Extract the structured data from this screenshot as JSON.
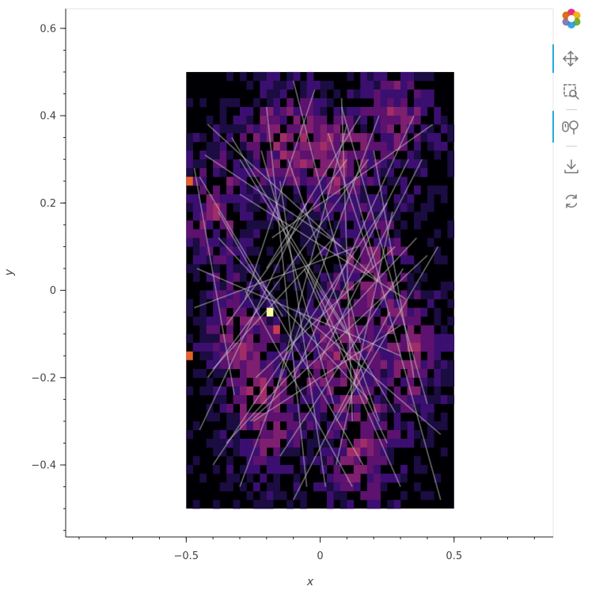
{
  "toolbar": {
    "tools": [
      {
        "name": "logo",
        "label": "Bokeh"
      },
      {
        "name": "pan",
        "label": "Pan",
        "active": true
      },
      {
        "name": "box-zoom",
        "label": "Box Zoom",
        "active": false
      },
      {
        "name": "wheel-zoom",
        "label": "Wheel Zoom",
        "active": true
      },
      {
        "name": "save",
        "label": "Save",
        "active": false
      },
      {
        "name": "reset",
        "label": "Reset",
        "active": false
      }
    ],
    "accent_color": "#26aae1"
  },
  "chart_data": {
    "type": "heatmap",
    "title": "",
    "xlabel": "x",
    "ylabel": "y",
    "xlim": [
      -0.95,
      0.87
    ],
    "ylim": [
      -0.565,
      0.645
    ],
    "x_ticks": [
      -0.5,
      0,
      0.5
    ],
    "y_ticks": [
      -0.4,
      -0.2,
      0,
      0.2,
      0.4,
      0.6
    ],
    "x_tick_labels": [
      "−0.5",
      "0",
      "0.5"
    ],
    "y_tick_labels": [
      "−0.4",
      "−0.2",
      "0",
      "0.2",
      "0.4",
      "0.6"
    ],
    "colormap": "inferno",
    "image_extent": {
      "x": [
        -0.5,
        0.5
      ],
      "y": [
        -0.5,
        0.5
      ]
    },
    "grid": {
      "nx": 40,
      "ny": 50
    },
    "hot_cells": [
      {
        "x": -0.19,
        "y": -0.04,
        "value": 1.0
      },
      {
        "x": -0.48,
        "y": 0.26,
        "value": 0.8
      },
      {
        "x": -0.48,
        "y": -0.14,
        "value": 0.8
      },
      {
        "x": -0.16,
        "y": -0.09,
        "value": 0.65
      },
      {
        "x": 0.12,
        "y": -0.37,
        "value": 0.6
      }
    ],
    "overlay": {
      "type": "path-segments",
      "color": "#c8c8c8",
      "opacity": 0.45,
      "segments": [
        [
          [
            -0.47,
            0.28
          ],
          [
            -0.32,
            -0.24
          ]
        ],
        [
          [
            -0.45,
            0.26
          ],
          [
            -0.14,
            -0.06
          ]
        ],
        [
          [
            -0.43,
            0.31
          ],
          [
            0.08,
            0.1
          ]
        ],
        [
          [
            -0.38,
            0.18
          ],
          [
            0.16,
            -0.4
          ]
        ],
        [
          [
            -0.35,
            -0.08
          ],
          [
            0.1,
            0.3
          ]
        ],
        [
          [
            -0.3,
            0.22
          ],
          [
            0.32,
            -0.02
          ]
        ],
        [
          [
            -0.28,
            0.0
          ],
          [
            0.12,
            -0.45
          ]
        ],
        [
          [
            -0.24,
            -0.2
          ],
          [
            0.28,
            0.1
          ]
        ],
        [
          [
            -0.22,
            0.32
          ],
          [
            0.05,
            -0.26
          ]
        ],
        [
          [
            -0.2,
            0.42
          ],
          [
            -0.05,
            -0.45
          ]
        ],
        [
          [
            -0.18,
            0.12
          ],
          [
            0.42,
            0.38
          ]
        ],
        [
          [
            -0.15,
            -0.38
          ],
          [
            0.31,
            0.05
          ]
        ],
        [
          [
            -0.12,
            0.3
          ],
          [
            0.22,
            -0.3
          ]
        ],
        [
          [
            -0.1,
            0.48
          ],
          [
            0.15,
            -0.12
          ]
        ],
        [
          [
            -0.08,
            -0.05
          ],
          [
            0.45,
            -0.33
          ]
        ],
        [
          [
            -0.05,
            0.2
          ],
          [
            -0.45,
            -0.32
          ]
        ],
        [
          [
            -0.02,
            0.46
          ],
          [
            -0.28,
            -0.02
          ]
        ],
        [
          [
            0.0,
            -0.16
          ],
          [
            0.38,
            0.3
          ]
        ],
        [
          [
            0.03,
            0.36
          ],
          [
            0.2,
            0.05
          ]
        ],
        [
          [
            0.05,
            0.12
          ],
          [
            -0.4,
            -0.18
          ]
        ],
        [
          [
            0.08,
            0.44
          ],
          [
            0.12,
            -0.3
          ]
        ],
        [
          [
            0.1,
            -0.1
          ],
          [
            -0.3,
            0.3
          ]
        ],
        [
          [
            0.12,
            0.25
          ],
          [
            0.45,
            -0.48
          ]
        ],
        [
          [
            0.15,
            0.4
          ],
          [
            -0.2,
            0.05
          ]
        ],
        [
          [
            0.18,
            -0.25
          ],
          [
            -0.38,
            0.12
          ]
        ],
        [
          [
            0.2,
            0.32
          ],
          [
            0.35,
            -0.2
          ]
        ],
        [
          [
            0.22,
            0.02
          ],
          [
            -0.42,
            0.38
          ]
        ],
        [
          [
            0.25,
            -0.35
          ],
          [
            -0.05,
            0.05
          ]
        ],
        [
          [
            0.27,
            0.18
          ],
          [
            0.06,
            -0.4
          ]
        ],
        [
          [
            0.3,
            -0.08
          ],
          [
            -0.25,
            -0.3
          ]
        ],
        [
          [
            0.33,
            0.3
          ],
          [
            0.02,
            -0.08
          ]
        ],
        [
          [
            0.36,
            0.12
          ],
          [
            -0.35,
            -0.35
          ]
        ],
        [
          [
            0.4,
            -0.26
          ],
          [
            0.08,
            0.42
          ]
        ],
        [
          [
            -0.4,
            -0.4
          ],
          [
            0.25,
            0.2
          ]
        ],
        [
          [
            -0.33,
            0.35
          ],
          [
            0.28,
            -0.28
          ]
        ],
        [
          [
            -0.26,
            -0.3
          ],
          [
            0.4,
            0.08
          ]
        ],
        [
          [
            -0.16,
            -0.22
          ],
          [
            0.1,
            0.38
          ]
        ],
        [
          [
            -0.46,
            0.05
          ],
          [
            0.3,
            -0.15
          ]
        ],
        [
          [
            -0.42,
            -0.2
          ],
          [
            0.18,
            0.3
          ]
        ],
        [
          [
            -0.06,
            0.05
          ],
          [
            0.3,
            -0.45
          ]
        ],
        [
          [
            0.02,
            -0.45
          ],
          [
            -0.15,
            0.25
          ]
        ],
        [
          [
            0.14,
            0.1
          ],
          [
            -0.47,
            -0.04
          ]
        ],
        [
          [
            -0.3,
            -0.45
          ],
          [
            0.22,
            0.4
          ]
        ],
        [
          [
            0.35,
            0.4
          ],
          [
            -0.1,
            -0.2
          ]
        ],
        [
          [
            -0.1,
            -0.48
          ],
          [
            0.26,
            -0.05
          ]
        ],
        [
          [
            0.06,
            -0.3
          ],
          [
            0.44,
            0.1
          ]
        ]
      ]
    }
  }
}
